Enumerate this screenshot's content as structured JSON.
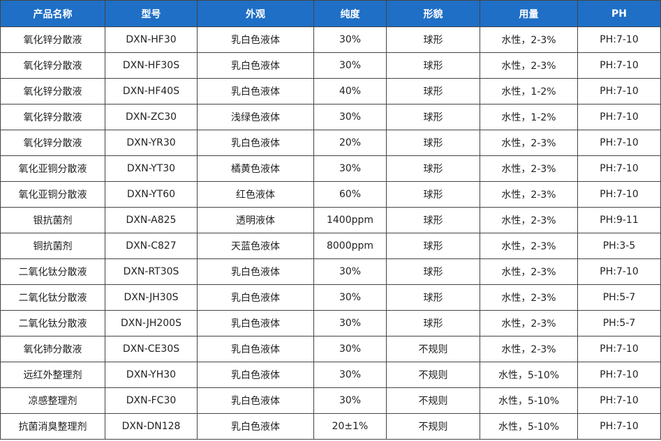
{
  "table": {
    "header": [
      "产品名称",
      "型号",
      "外观",
      "纯度",
      "形貌",
      "用量",
      "PH"
    ],
    "rows": [
      [
        "氧化锌分散液",
        "DXN-HF30",
        "乳白色液体",
        "30%",
        "球形",
        "水性，2-3%",
        "PH:7-10"
      ],
      [
        "氧化锌分散液",
        "DXN-HF30S",
        "乳白色液体",
        "30%",
        "球形",
        "水性，2-3%",
        "PH:7-10"
      ],
      [
        "氧化锌分散液",
        "DXN-HF40S",
        "乳白色液体",
        "40%",
        "球形",
        "水性，1-2%",
        "PH:7-10"
      ],
      [
        "氧化锌分散液",
        "DXN-ZC30",
        "浅绿色液体",
        "30%",
        "球形",
        "水性，1-2%",
        "PH:7-10"
      ],
      [
        "氧化锌分散液",
        "DXN-YR30",
        "乳白色液体",
        "20%",
        "球形",
        "水性，2-3%",
        "PH:7-10"
      ],
      [
        "氧化亚铜分散液",
        "DXN-YT30",
        "橘黄色液体",
        "30%",
        "球形",
        "水性，2-3%",
        "PH:7-10"
      ],
      [
        "氧化亚铜分散液",
        "DXN-YT60",
        "红色液体",
        "60%",
        "球形",
        "水性，2-3%",
        "PH:7-10"
      ],
      [
        "银抗菌剂",
        "DXN-A825",
        "透明液体",
        "1400ppm",
        "球形",
        "水性，2-3%",
        "PH:9-11"
      ],
      [
        "铜抗菌剂",
        "DXN-C827",
        "天蓝色液体",
        "8000ppm",
        "球形",
        "水性，2-3%",
        "PH:3-5"
      ],
      [
        "二氧化钛分散液",
        "DXN-RT30S",
        "乳白色液体",
        "30%",
        "球形",
        "水性，2-3%",
        "PH:7-10"
      ],
      [
        "二氧化钛分散液",
        "DXN-JH30S",
        "乳白色液体",
        "30%",
        "球形",
        "水性，2-3%",
        "PH:5-7"
      ],
      [
        "二氧化钛分散液",
        "DXN-JH200S",
        "乳白色液体",
        "30%",
        "球形",
        "水性，2-3%",
        "PH:5-7"
      ],
      [
        "氧化铈分散液",
        "DXN-CE30S",
        "乳白色液体",
        "30%",
        "不规则",
        "水性，2-3%",
        "PH:7-10"
      ],
      [
        "远红外整理剂",
        "DXN-YH30",
        "乳白色液体",
        "30%",
        "不规则",
        "水性，5-10%",
        "PH:7-10"
      ],
      [
        "凉感整理剂",
        "DXN-FC30",
        "乳白色液体",
        "30%",
        "不规则",
        "水性，5-10%",
        "PH:7-10"
      ],
      [
        "抗菌消臭整理剂",
        "DXN-DN128",
        "乳白色液体",
        "20±1%",
        "不规则",
        "水性，5-10%",
        "PH:7-10"
      ]
    ]
  }
}
